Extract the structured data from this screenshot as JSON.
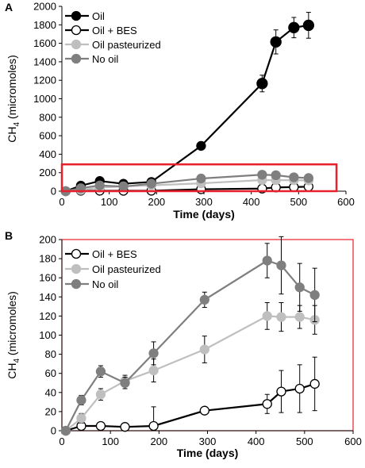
{
  "chart_data": [
    {
      "type": "line",
      "panel_label": "A",
      "xlabel": "Time (days)",
      "ylabel_main": "CH",
      "ylabel_sub": "4",
      "ylabel_tail": " (micromoles)",
      "xlim": [
        0,
        600
      ],
      "ylim": [
        0,
        2000
      ],
      "xticks": [
        0,
        100,
        200,
        300,
        400,
        500,
        600
      ],
      "yticks": [
        0,
        200,
        400,
        600,
        800,
        1000,
        1200,
        1400,
        1600,
        1800,
        2000
      ],
      "legend": "top-left",
      "highlight_box": {
        "x": [
          0,
          580
        ],
        "y": [
          0,
          290
        ],
        "color": "#e8202a"
      },
      "series": [
        {
          "name": "Oil",
          "marker_fill": "#000000",
          "line": "#000000",
          "x": [
            8,
            40,
            80,
            130,
            189,
            294,
            423,
            452,
            490,
            521
          ],
          "y": [
            0,
            60,
            110,
            80,
            100,
            490,
            1165,
            1615,
            1770,
            1795
          ],
          "err": [
            0,
            10,
            15,
            20,
            20,
            30,
            90,
            130,
            110,
            140
          ]
        },
        {
          "name": "Oil + BES",
          "marker_fill": "#ffffff",
          "line": "#000000",
          "x": [
            8,
            40,
            80,
            130,
            189,
            294,
            423,
            452,
            490,
            521
          ],
          "y": [
            0,
            5,
            5,
            4,
            5,
            21,
            28,
            41,
            44,
            49
          ],
          "err": [
            0,
            2,
            2,
            2,
            20,
            2,
            10,
            22,
            25,
            28
          ]
        },
        {
          "name": "Oil pasteurized",
          "marker_fill": "#bfbfbf",
          "line": "#bfbfbf",
          "x": [
            8,
            40,
            80,
            130,
            189,
            294,
            423,
            452,
            490,
            521
          ],
          "y": [
            0,
            13,
            38,
            52,
            63,
            85,
            120,
            119,
            119,
            116
          ],
          "err": [
            0,
            5,
            6,
            6,
            12,
            14,
            14,
            15,
            12,
            15
          ]
        },
        {
          "name": "No oil",
          "marker_fill": "#7f7f7f",
          "line": "#7f7f7f",
          "x": [
            8,
            40,
            80,
            130,
            189,
            294,
            423,
            452,
            490,
            521
          ],
          "y": [
            0,
            32,
            62,
            50,
            81,
            137,
            178,
            173,
            150,
            142
          ],
          "err": [
            0,
            5,
            6,
            6,
            12,
            8,
            18,
            30,
            25,
            28
          ]
        }
      ]
    },
    {
      "type": "line",
      "panel_label": "B",
      "xlabel": "Time (days)",
      "ylabel_main": "CH",
      "ylabel_sub": "4",
      "ylabel_tail": " (micromoles)",
      "xlim": [
        0,
        600
      ],
      "ylim": [
        0,
        200
      ],
      "xticks": [
        0,
        100,
        200,
        300,
        400,
        500,
        600
      ],
      "yticks": [
        0,
        20,
        40,
        60,
        80,
        100,
        120,
        140,
        160,
        180,
        200
      ],
      "legend": "top-left",
      "frame_color": "#e8202a",
      "series": [
        {
          "name": "Oil + BES",
          "marker_fill": "#ffffff",
          "line": "#000000",
          "x": [
            8,
            40,
            80,
            130,
            189,
            294,
            423,
            452,
            490,
            521
          ],
          "y": [
            0,
            5,
            5,
            4,
            5,
            21,
            28,
            41,
            44,
            49
          ],
          "err": [
            0,
            2,
            2,
            2,
            20,
            2,
            10,
            22,
            25,
            28
          ]
        },
        {
          "name": "Oil pasteurized",
          "marker_fill": "#bfbfbf",
          "line": "#bfbfbf",
          "x": [
            8,
            40,
            80,
            130,
            189,
            294,
            423,
            452,
            490,
            521
          ],
          "y": [
            0,
            13,
            38,
            52,
            63,
            85,
            120,
            119,
            119,
            116
          ],
          "err": [
            0,
            5,
            6,
            6,
            12,
            14,
            14,
            15,
            12,
            15
          ]
        },
        {
          "name": "No oil",
          "marker_fill": "#7f7f7f",
          "line": "#7f7f7f",
          "x": [
            8,
            40,
            80,
            130,
            189,
            294,
            423,
            452,
            490,
            521
          ],
          "y": [
            0,
            32,
            62,
            50,
            81,
            137,
            178,
            173,
            150,
            142
          ],
          "err": [
            0,
            5,
            6,
            6,
            12,
            8,
            18,
            30,
            25,
            28
          ]
        }
      ]
    }
  ]
}
